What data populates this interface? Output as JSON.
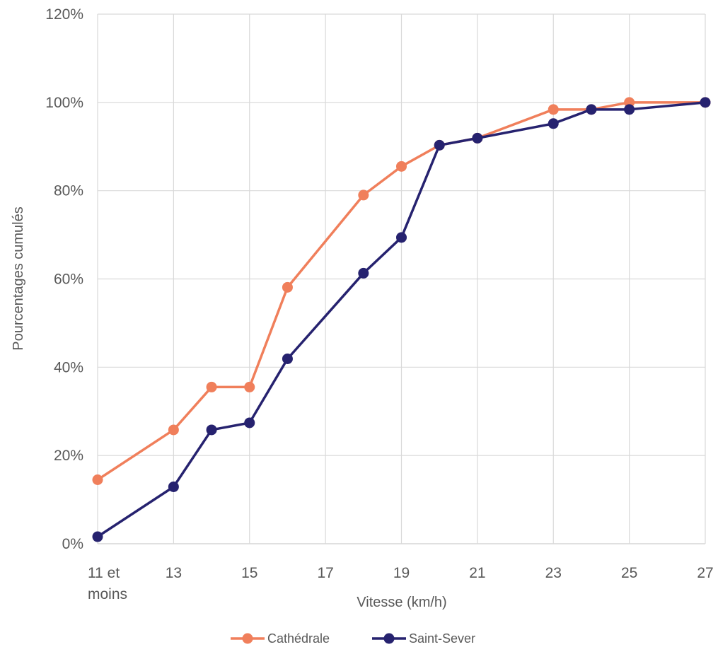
{
  "chart_data": {
    "type": "line",
    "x": [
      "11 et moins",
      "13",
      "14",
      "15",
      "16",
      "18",
      "19",
      "20",
      "21",
      "23",
      "24",
      "25",
      "27"
    ],
    "x_ticks": [
      "11 et moins",
      "13",
      "15",
      "17",
      "19",
      "21",
      "23",
      "25",
      "27"
    ],
    "y_ticks": [
      "0%",
      "20%",
      "40%",
      "60%",
      "80%",
      "100%",
      "120%"
    ],
    "xlabel": "Vitesse (km/h)",
    "ylabel": "Pourcentages cumulés",
    "ylim": [
      0,
      120
    ],
    "grid": true,
    "legend_position": "bottom",
    "series": [
      {
        "name": "Cathédrale",
        "color": "#F07F5B",
        "values": [
          14.5,
          25.8,
          35.5,
          35.5,
          58.1,
          79.0,
          85.5,
          90.3,
          91.9,
          98.4,
          98.4,
          100,
          100
        ]
      },
      {
        "name": "Saint-Sever",
        "color": "#26226F",
        "values": [
          1.6,
          12.9,
          25.8,
          27.4,
          41.9,
          61.3,
          69.4,
          90.3,
          91.9,
          95.2,
          98.4,
          98.4,
          100
        ]
      }
    ]
  }
}
